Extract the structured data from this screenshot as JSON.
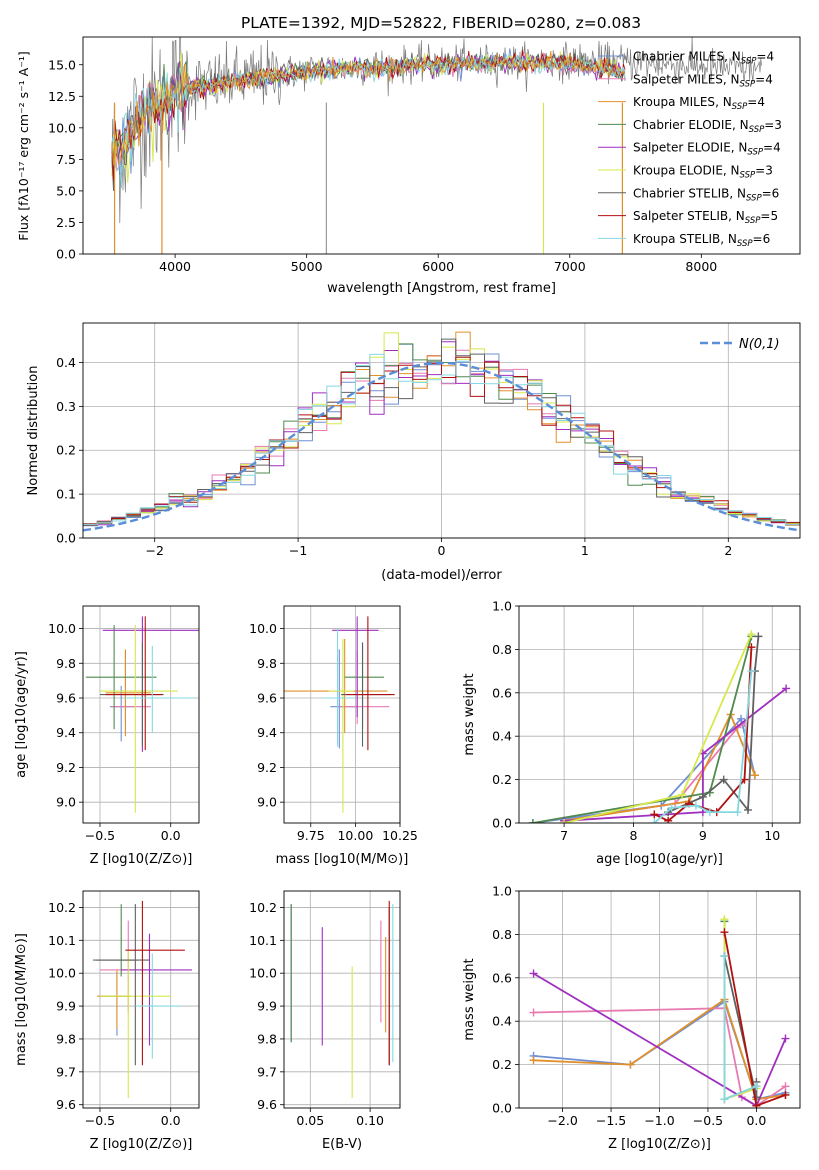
{
  "figure_title": "PLATE=1392, MJD=52822, FIBERID=0280, z=0.083",
  "models": [
    {
      "name": "Chabrier MILES",
      "nssp": 4,
      "color": "#6e8fd6"
    },
    {
      "name": "Salpeter MILES",
      "nssp": 4,
      "color": "#e87ab2"
    },
    {
      "name": "Kroupa MILES",
      "nssp": 4,
      "color": "#e0902a"
    },
    {
      "name": "Chabrier ELODIE",
      "nssp": 3,
      "color": "#4f8a4f"
    },
    {
      "name": "Salpeter ELODIE",
      "nssp": 4,
      "color": "#a02fc0"
    },
    {
      "name": "Kroupa ELODIE",
      "nssp": 3,
      "color": "#d7e84a"
    },
    {
      "name": "Chabrier STELIB",
      "nssp": 6,
      "color": "#606060"
    },
    {
      "name": "Salpeter STELIB",
      "nssp": 5,
      "color": "#b01010"
    },
    {
      "name": "Kroupa STELIB",
      "nssp": 6,
      "color": "#86d8e0"
    }
  ],
  "chart_data": [
    {
      "id": "spectrum",
      "type": "line",
      "title": "PLATE=1392, MJD=52822, FIBERID=0280, z=0.083",
      "xlabel": "wavelength [Angstrom, rest frame]",
      "ylabel": "Flux [fλ10⁻¹⁷ erg cm⁻² s⁻¹ A⁻¹]",
      "xlim": [
        3300,
        8750
      ],
      "ylim": [
        0,
        17.2
      ],
      "xticks": [
        4000,
        5000,
        6000,
        7000,
        8000
      ],
      "yticks": [
        0.0,
        2.5,
        5.0,
        7.5,
        10.0,
        12.5,
        15.0
      ],
      "grid": false,
      "legend": "right",
      "data_continuum": {
        "x": [
          3520,
          3600,
          3700,
          3800,
          3900,
          4000,
          4100,
          4300,
          4500,
          4800,
          5000,
          5500,
          6000,
          6500,
          7000,
          7500,
          8000,
          8500
        ],
        "y": [
          8.0,
          8.3,
          10.5,
          11.5,
          12.0,
          12.8,
          13.2,
          13.5,
          13.8,
          14.3,
          14.5,
          14.9,
          15.1,
          15.2,
          15.3,
          15.2,
          14.9,
          14.6
        ]
      },
      "model_continuum": {
        "x": [
          3520,
          3600,
          3700,
          3800,
          3900,
          4000,
          4100,
          4300,
          4500,
          4800,
          5000,
          5500,
          6000,
          6500,
          7000,
          7400
        ],
        "y": [
          7.8,
          8.2,
          10.3,
          11.6,
          12.2,
          12.6,
          13.2,
          13.4,
          13.8,
          14.2,
          14.5,
          14.8,
          15.0,
          15.2,
          15.1,
          14.4
        ]
      },
      "features": [
        {
          "x": 3540,
          "y": 0.0
        },
        {
          "x": 3900,
          "y": 0.0
        },
        {
          "x": 5150,
          "y": 0.0
        },
        {
          "x": 6800,
          "y": 0.0
        },
        {
          "x": 7400,
          "y": 0.0
        }
      ]
    },
    {
      "id": "residuals",
      "type": "histogram",
      "xlabel": "(data-model)/error",
      "ylabel": "Normed distribution",
      "xlim": [
        -2.5,
        2.5
      ],
      "ylim": [
        0,
        0.49
      ],
      "xticks": [
        -2,
        -1,
        0,
        1,
        2
      ],
      "yticks": [
        0.0,
        0.1,
        0.2,
        0.3,
        0.4
      ],
      "grid": true,
      "legend": "top-right",
      "bin_width": 0.1,
      "reference_curve": {
        "name": "N(0,1)",
        "color": "#5b8ed8",
        "mean": 0,
        "sd": 1
      }
    },
    {
      "id": "age_vs_Z",
      "type": "errorbar",
      "xlabel": "Z [log10(Z/Z⊙)]",
      "ylabel": "age  [log10(age/yr)]",
      "xlim": [
        -0.62,
        0.2
      ],
      "ylim": [
        8.88,
        10.13
      ],
      "xticks": [
        -0.5,
        0.0
      ],
      "yticks": [
        9.0,
        9.2,
        9.4,
        9.6,
        9.8,
        10.0
      ],
      "grid": true,
      "points": [
        {
          "model": 0,
          "x": -0.35,
          "y": 9.55,
          "xerr": [
            0.08,
            0.1
          ],
          "yerr": [
            0.2,
            0.12
          ]
        },
        {
          "model": 1,
          "x": -0.32,
          "y": 9.55,
          "xerr": [
            0.1,
            0.18
          ],
          "yerr": [
            0.1,
            0.32
          ]
        },
        {
          "model": 2,
          "x": -0.32,
          "y": 9.63,
          "xerr": [
            0.14,
            0.18
          ],
          "yerr": [
            0.25,
            0.25
          ]
        },
        {
          "model": 3,
          "x": -0.4,
          "y": 9.72,
          "xerr": [
            0.2,
            0.3
          ],
          "yerr": [
            0.3,
            0.3
          ]
        },
        {
          "model": 4,
          "x": -0.2,
          "y": 9.99,
          "xerr": [
            0.28,
            0.4
          ],
          "yerr": [
            0.7,
            0.08
          ]
        },
        {
          "model": 5,
          "x": -0.25,
          "y": 9.64,
          "xerr": [
            0.25,
            0.3
          ],
          "yerr": [
            0.7,
            0.38
          ]
        },
        {
          "model": 6,
          "x": -0.2,
          "y": 9.62,
          "xerr": [
            0.3,
            0.15
          ],
          "yerr": [
            0.3,
            0.3
          ]
        },
        {
          "model": 7,
          "x": -0.18,
          "y": 9.62,
          "xerr": [
            0.28,
            0.12
          ],
          "yerr": [
            0.32,
            0.45
          ]
        },
        {
          "model": 8,
          "x": -0.13,
          "y": 9.6,
          "xerr": [
            0.2,
            0.3
          ],
          "yerr": [
            0.2,
            0.3
          ]
        }
      ]
    },
    {
      "id": "age_vs_mass",
      "type": "errorbar",
      "xlabel": "mass [log10(M/M⊙)]",
      "ylabel": "",
      "xlim": [
        9.6,
        10.25
      ],
      "ylim": [
        8.88,
        10.13
      ],
      "xticks": [
        9.75,
        10.0,
        10.25
      ],
      "yticks": [
        9.0,
        9.2,
        9.4,
        9.6,
        9.8,
        10.0
      ],
      "grid": true,
      "points": [
        {
          "model": 0,
          "x": 9.91,
          "y": 9.55,
          "xerr": [
            0.05,
            0.1
          ],
          "yerr": [
            0.24,
            0.33
          ]
        },
        {
          "model": 1,
          "x": 10.01,
          "y": 9.55,
          "xerr": [
            0.1,
            0.18
          ],
          "yerr": [
            0.1,
            0.32
          ]
        },
        {
          "model": 2,
          "x": 9.94,
          "y": 9.64,
          "xerr": [
            0.34,
            0.24
          ],
          "yerr": [
            0.24,
            0.3
          ]
        },
        {
          "model": 3,
          "x": 10.04,
          "y": 9.72,
          "xerr": [
            0.1,
            0.12
          ],
          "yerr": [
            0.3,
            0.2
          ]
        },
        {
          "model": 4,
          "x": 10.01,
          "y": 9.99,
          "xerr": [
            0.14,
            0.12
          ],
          "yerr": [
            0.5,
            0.08
          ]
        },
        {
          "model": 5,
          "x": 9.93,
          "y": 9.64,
          "xerr": [
            0.08,
            0.06
          ],
          "yerr": [
            0.7,
            0.3
          ]
        },
        {
          "model": 6,
          "x": 10.04,
          "y": 9.62,
          "xerr": [
            0.12,
            0.16
          ],
          "yerr": [
            0.3,
            0.3
          ]
        },
        {
          "model": 7,
          "x": 10.07,
          "y": 9.62,
          "xerr": [
            0.12,
            0.15
          ],
          "yerr": [
            0.32,
            0.45
          ]
        },
        {
          "model": 8,
          "x": 9.9,
          "y": 9.6,
          "xerr": [
            0.08,
            0.1
          ],
          "yerr": [
            0.28,
            0.4
          ]
        }
      ]
    },
    {
      "id": "weight_vs_age",
      "type": "line",
      "xlabel": "age  [log10(age/yr)]",
      "ylabel": "mass weight",
      "xlim": [
        6.35,
        10.4
      ],
      "ylim": [
        0,
        1.0
      ],
      "xticks": [
        7,
        8,
        9,
        10
      ],
      "yticks": [
        0.0,
        0.2,
        0.4,
        0.6,
        0.8,
        1.0
      ],
      "grid": true,
      "series": [
        {
          "model": 0,
          "x": [
            6.55,
            8.4,
            9.55,
            9.75
          ],
          "y": [
            0.0,
            0.08,
            0.48,
            0.22
          ]
        },
        {
          "model": 1,
          "x": [
            7.0,
            8.6,
            9.5,
            9.6
          ],
          "y": [
            0.01,
            0.09,
            0.44,
            0.46
          ]
        },
        {
          "model": 2,
          "x": [
            7.0,
            8.8,
            9.4,
            9.75
          ],
          "y": [
            0.01,
            0.1,
            0.5,
            0.22
          ]
        },
        {
          "model": 3,
          "x": [
            6.55,
            9.1,
            9.7
          ],
          "y": [
            0.0,
            0.14,
            0.86
          ]
        },
        {
          "model": 4,
          "x": [
            7.0,
            9.0,
            9.0,
            10.2
          ],
          "y": [
            0.01,
            0.05,
            0.32,
            0.62
          ]
        },
        {
          "model": 5,
          "x": [
            7.0,
            8.7,
            9.7
          ],
          "y": [
            0.0,
            0.13,
            0.87
          ]
        },
        {
          "model": 6,
          "x": [
            8.5,
            9.0,
            9.3,
            9.65,
            9.75,
            9.8
          ],
          "y": [
            0.05,
            0.12,
            0.2,
            0.06,
            0.7,
            0.86
          ]
        },
        {
          "model": 7,
          "x": [
            8.3,
            8.5,
            8.8,
            9.2,
            9.6,
            9.7
          ],
          "y": [
            0.04,
            0.01,
            0.09,
            0.05,
            0.2,
            0.81
          ]
        },
        {
          "model": 8,
          "x": [
            8.3,
            8.55,
            8.9,
            9.1,
            9.5,
            9.7
          ],
          "y": [
            0.0,
            0.07,
            0.08,
            0.05,
            0.05,
            0.7
          ]
        }
      ]
    },
    {
      "id": "mass_vs_Z",
      "type": "errorbar",
      "xlabel": "Z [log10(Z/Z⊙)]",
      "ylabel": "mass [log10(M/M⊙)]",
      "xlim": [
        -0.62,
        0.2
      ],
      "ylim": [
        9.59,
        10.25
      ],
      "xticks": [
        -0.5,
        0.0
      ],
      "yticks": [
        9.6,
        9.7,
        9.8,
        9.9,
        10.0,
        10.1,
        10.2
      ],
      "grid": true,
      "points": [
        {
          "model": 0,
          "x": -0.38,
          "y": 9.93,
          "xerr": [
            0.12,
            0.1
          ],
          "yerr": [
            0.12,
            0.07
          ]
        },
        {
          "model": 1,
          "x": -0.3,
          "y": 10.01,
          "xerr": [
            0.2,
            0.18
          ],
          "yerr": [
            0.13,
            0.15
          ]
        },
        {
          "model": 2,
          "x": -0.38,
          "y": 9.93,
          "xerr": [
            0.14,
            0.1
          ],
          "yerr": [
            0.1,
            0.08
          ]
        },
        {
          "model": 3,
          "x": -0.35,
          "y": 10.04,
          "xerr": [
            0.2,
            0.12
          ],
          "yerr": [
            0.05,
            0.17
          ]
        },
        {
          "model": 4,
          "x": -0.15,
          "y": 10.01,
          "xerr": [
            0.2,
            0.3
          ],
          "yerr": [
            0.23,
            0.11
          ]
        },
        {
          "model": 5,
          "x": -0.3,
          "y": 9.93,
          "xerr": [
            0.2,
            0.3
          ],
          "yerr": [
            0.31,
            0.14
          ]
        },
        {
          "model": 6,
          "x": -0.25,
          "y": 10.04,
          "xerr": [
            0.28,
            0.1
          ],
          "yerr": [
            0.32,
            0.17
          ]
        },
        {
          "model": 7,
          "x": -0.2,
          "y": 10.07,
          "xerr": [
            0.12,
            0.3
          ],
          "yerr": [
            0.35,
            0.15
          ]
        },
        {
          "model": 8,
          "x": -0.13,
          "y": 9.9,
          "xerr": [
            0.12,
            0.2
          ],
          "yerr": [
            0.16,
            0.16
          ]
        }
      ]
    },
    {
      "id": "mass_vs_ebv",
      "type": "errorbar",
      "xlabel": "E(B-V)",
      "ylabel": "",
      "xlim": [
        0.028,
        0.125
      ],
      "ylim": [
        9.59,
        10.25
      ],
      "xticks": [
        0.05,
        0.1
      ],
      "yticks": [
        9.6,
        9.7,
        9.8,
        9.9,
        10.0,
        10.1,
        10.2
      ],
      "grid": true,
      "points": [
        {
          "model": 0,
          "x": 0.034,
          "y": 10.0,
          "yerr": [
            0.21,
            0.21
          ]
        },
        {
          "model": 1,
          "x": 0.109,
          "y": 10.03,
          "yerr": [
            0.18,
            0.13
          ]
        },
        {
          "model": 2,
          "x": 0.113,
          "y": 9.99,
          "yerr": [
            0.17,
            0.12
          ]
        },
        {
          "model": 3,
          "x": 0.034,
          "y": 10.0,
          "yerr": [
            0.21,
            0.21
          ]
        },
        {
          "model": 4,
          "x": 0.06,
          "y": 9.96,
          "yerr": [
            0.18,
            0.18
          ]
        },
        {
          "model": 5,
          "x": 0.085,
          "y": 9.82,
          "yerr": [
            0.2,
            0.2
          ]
        },
        {
          "model": 6,
          "x": 0.116,
          "y": 9.96,
          "yerr": [
            0.24,
            0.24
          ]
        },
        {
          "model": 7,
          "x": 0.116,
          "y": 9.97,
          "yerr": [
            0.25,
            0.25
          ]
        },
        {
          "model": 8,
          "x": 0.119,
          "y": 9.97,
          "yerr": [
            0.24,
            0.24
          ]
        }
      ]
    },
    {
      "id": "weight_vs_Z",
      "type": "line",
      "xlabel": "Z [log10(Z/Z⊙)]",
      "ylabel": "mass weight",
      "xlim": [
        -2.45,
        0.45
      ],
      "ylim": [
        0,
        1.0
      ],
      "xticks": [
        -2.0,
        -1.5,
        -1.0,
        -0.5,
        0.0
      ],
      "yticks": [
        0.0,
        0.2,
        0.4,
        0.6,
        0.8,
        1.0
      ],
      "grid": true,
      "series": [
        {
          "model": 0,
          "x": [
            -2.3,
            -1.3,
            -0.33,
            0.0,
            0.3
          ],
          "y": [
            0.24,
            0.2,
            0.49,
            0.04,
            0.07
          ]
        },
        {
          "model": 1,
          "x": [
            -2.3,
            -0.33,
            -0.15,
            0.0,
            0.3
          ],
          "y": [
            0.44,
            0.46,
            0.05,
            0.01,
            0.1
          ]
        },
        {
          "model": 2,
          "x": [
            -2.3,
            -1.3,
            -0.33,
            0.0,
            0.3
          ],
          "y": [
            0.22,
            0.2,
            0.5,
            0.04,
            0.06
          ]
        },
        {
          "model": 3,
          "x": [
            -0.33,
            -0.33,
            0.0
          ],
          "y": [
            0.86,
            0.04,
            0.1
          ]
        },
        {
          "model": 4,
          "x": [
            -2.3,
            0.0,
            0.3
          ],
          "y": [
            0.62,
            0.01,
            0.32
          ]
        },
        {
          "model": 5,
          "x": [
            -0.33,
            -0.33,
            0.0
          ],
          "y": [
            0.87,
            0.04,
            0.09
          ]
        },
        {
          "model": 6,
          "x": [
            -0.33,
            0.0,
            0.0
          ],
          "y": [
            0.7,
            0.05,
            0.12
          ]
        },
        {
          "model": 7,
          "x": [
            -0.33,
            0.0,
            0.3
          ],
          "y": [
            0.81,
            0.01,
            0.06
          ]
        },
        {
          "model": 8,
          "x": [
            -0.33,
            -0.33,
            0.0
          ],
          "y": [
            0.7,
            0.04,
            0.1
          ]
        }
      ]
    }
  ]
}
